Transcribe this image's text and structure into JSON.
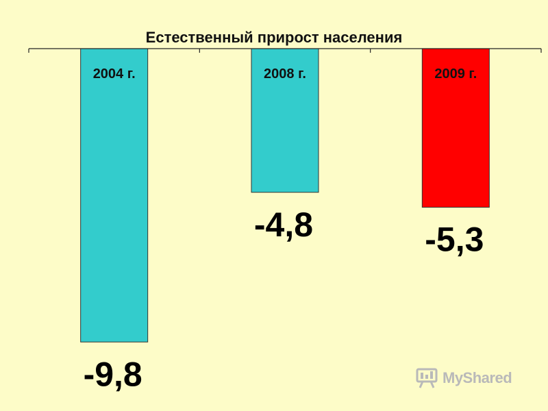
{
  "chart_data": {
    "type": "bar",
    "title": "Естественный прирост населения",
    "categories": [
      "2004 г.",
      "2008 г.",
      "2009 г."
    ],
    "values": [
      -9.8,
      -4.8,
      -5.3
    ],
    "value_labels": [
      "-9,8",
      "-4,8",
      "-5,3"
    ],
    "bar_colors": [
      "#33cccc",
      "#33cccc",
      "#ff0000"
    ],
    "ylim": [
      -10.5,
      0
    ],
    "grid": false,
    "legend": "none"
  },
  "watermark": {
    "text": "MyShared",
    "icon": "myshared-logo-icon"
  }
}
